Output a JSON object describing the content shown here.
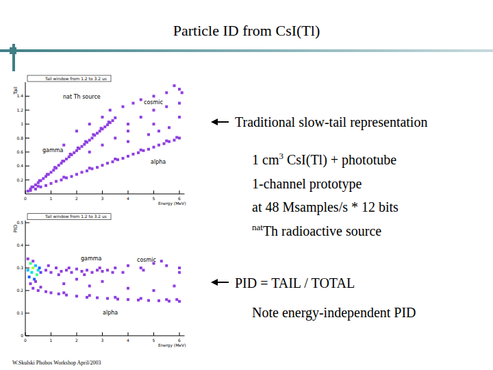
{
  "slide": {
    "title": "Particle ID from CsI(Tl)",
    "footer": "W.Skulski Phobos Workshop April/2003",
    "notes": [
      {
        "parts": [
          "Traditional slow-tail representation"
        ]
      },
      {
        "parts": [
          "1 cm",
          {
            "sup": "3"
          },
          " CsI(Tl) + phototube"
        ]
      },
      {
        "parts": [
          "1-channel prototype"
        ]
      },
      {
        "parts": [
          "at 48 Msamples/s * 12 bits"
        ]
      },
      {
        "parts": [
          {
            "sup": "nat"
          },
          "Th radioactive source"
        ]
      },
      {
        "parts": [
          "PID = TAIL / TOTAL"
        ]
      },
      {
        "parts": [
          "Note energy-independent PID"
        ]
      }
    ]
  },
  "chart_data": [
    {
      "type": "scatter",
      "title": "Tail window from 1.2 to 3.2 us",
      "x_label": "Energy (MeV)",
      "y_label": "Tail",
      "annotations": [
        "nat Th source"
      ],
      "xlim": [
        0,
        6.2
      ],
      "ylim": [
        0,
        1.6
      ],
      "xticks": [
        0,
        1,
        2,
        3,
        4,
        5,
        6
      ],
      "yticks": [
        0.2,
        0.4,
        0.6,
        0.8,
        1,
        1.2,
        1.4
      ],
      "marker": "square",
      "series": [
        {
          "name": "gamma",
          "color": "#8f3fe0",
          "x": [
            0.1,
            0.2,
            0.3,
            0.4,
            0.5,
            0.6,
            0.7,
            0.8,
            0.9,
            1.0,
            1.1,
            1.2,
            1.3,
            1.4,
            1.5,
            1.6,
            1.7,
            1.8,
            1.9,
            2.0,
            2.1,
            2.2,
            2.3,
            2.4,
            2.5,
            2.6,
            2.7,
            2.8,
            2.9,
            3.0,
            3.1,
            3.2,
            3.3,
            3.4,
            3.5,
            0.25,
            0.55,
            0.85,
            1.15,
            1.45,
            1.75,
            2.05,
            2.35,
            2.65,
            2.95,
            3.25
          ],
          "values": [
            0.04,
            0.07,
            0.1,
            0.13,
            0.16,
            0.19,
            0.22,
            0.25,
            0.28,
            0.31,
            0.34,
            0.37,
            0.41,
            0.44,
            0.47,
            0.5,
            0.53,
            0.56,
            0.59,
            0.62,
            0.65,
            0.68,
            0.71,
            0.74,
            0.77,
            0.8,
            0.84,
            0.87,
            0.9,
            0.93,
            0.96,
            0.99,
            1.02,
            1.05,
            1.09,
            0.1,
            0.19,
            0.28,
            0.38,
            0.47,
            0.57,
            0.66,
            0.75,
            0.85,
            0.94,
            1.03
          ]
        },
        {
          "name": "alpha",
          "color": "#8f3fe0",
          "x": [
            0.2,
            0.4,
            0.6,
            0.8,
            1.0,
            1.2,
            1.4,
            1.6,
            1.8,
            2.0,
            2.2,
            2.4,
            2.6,
            2.8,
            3.0,
            3.2,
            3.4,
            3.6,
            3.8,
            4.0,
            4.2,
            4.4,
            4.6,
            4.8,
            5.0,
            5.2,
            5.4,
            5.6,
            5.8,
            6.0,
            0.5,
            1.5,
            2.5,
            3.5,
            4.5,
            5.5,
            5.9
          ],
          "values": [
            0.05,
            0.07,
            0.1,
            0.12,
            0.15,
            0.18,
            0.2,
            0.23,
            0.25,
            0.28,
            0.31,
            0.33,
            0.36,
            0.38,
            0.41,
            0.44,
            0.46,
            0.49,
            0.51,
            0.54,
            0.57,
            0.59,
            0.62,
            0.64,
            0.67,
            0.7,
            0.72,
            0.75,
            0.77,
            0.8,
            0.11,
            0.24,
            0.37,
            0.5,
            0.63,
            0.76,
            0.81
          ]
        },
        {
          "name": "cosmic",
          "color": "#8f3fe0",
          "x": [
            1.5,
            2.0,
            2.5,
            3.0,
            3.3,
            3.8,
            4.2,
            4.5,
            5.0,
            5.5,
            6.0,
            4.0,
            4.5,
            5.0,
            5.5,
            6.0,
            3.5,
            4.0,
            5.0,
            6.0,
            4.8,
            5.6,
            3.0,
            2.5,
            6.1,
            5.8,
            4.0,
            5.2
          ],
          "values": [
            0.7,
            0.9,
            1.0,
            1.1,
            1.2,
            1.25,
            1.3,
            1.35,
            1.4,
            1.45,
            1.5,
            1.0,
            1.1,
            1.2,
            1.25,
            1.3,
            0.8,
            0.9,
            1.0,
            1.1,
            0.85,
            0.95,
            0.7,
            0.6,
            1.45,
            1.55,
            0.75,
            0.9
          ]
        }
      ]
    },
    {
      "type": "scatter",
      "title": "Tail window from 1.2 to 3.2 us",
      "x_label": "Energy (MeV)",
      "y_label": "PID",
      "xlim": [
        0,
        6.2
      ],
      "ylim": [
        0,
        0.51
      ],
      "xticks": [
        0,
        1,
        2,
        3,
        4,
        5,
        6
      ],
      "yticks": [
        0,
        0.1,
        0.2,
        0.3,
        0.4,
        0.5
      ],
      "marker": "square",
      "series": [
        {
          "name": "gamma",
          "color": "#8f3fe0",
          "colors": [
            "#00c0ff",
            "#2060ff",
            "#40ff80",
            "#00e0e0",
            "#a0ff40",
            "#2060ff",
            "#00c0ff",
            "#40ff80",
            "#00e0e0",
            "#2060ff",
            "#6040ff",
            "#8f3fe0",
            "#8f3fe0",
            "#8f3fe0",
            "#8f3fe0",
            "#8f3fe0",
            "#8f3fe0",
            "#8f3fe0",
            "#8f3fe0",
            "#8f3fe0",
            "#8f3fe0",
            "#8f3fe0",
            "#8f3fe0",
            "#8f3fe0",
            "#8f3fe0",
            "#8f3fe0",
            "#8f3fe0",
            "#8f3fe0",
            "#8f3fe0",
            "#8f3fe0",
            "#8f3fe0",
            "#8f3fe0",
            "#8f3fe0",
            "#8f3fe0"
          ],
          "x": [
            0.1,
            0.15,
            0.2,
            0.25,
            0.3,
            0.35,
            0.4,
            0.45,
            0.5,
            0.55,
            0.6,
            0.1,
            0.2,
            0.3,
            0.4,
            0.8,
            1.0,
            1.2,
            1.4,
            1.6,
            1.8,
            2.0,
            2.2,
            2.4,
            2.6,
            2.8,
            3.0,
            3.2,
            3.4,
            0.9,
            1.3,
            1.7,
            2.3,
            2.9
          ],
          "values": [
            0.29,
            0.26,
            0.32,
            0.28,
            0.3,
            0.25,
            0.31,
            0.27,
            0.29,
            0.3,
            0.28,
            0.34,
            0.23,
            0.33,
            0.24,
            0.29,
            0.28,
            0.3,
            0.285,
            0.29,
            0.28,
            0.295,
            0.285,
            0.29,
            0.28,
            0.29,
            0.285,
            0.29,
            0.28,
            0.31,
            0.27,
            0.3,
            0.27,
            0.3
          ]
        },
        {
          "name": "alpha",
          "color": "#8f3fe0",
          "x": [
            0.3,
            0.5,
            0.8,
            1.0,
            1.3,
            1.6,
            2.0,
            2.4,
            2.8,
            3.2,
            3.6,
            4.0,
            4.4,
            4.8,
            5.2,
            5.6,
            6.0,
            0.6,
            1.5,
            2.5,
            3.5,
            4.5,
            5.5,
            5.9
          ],
          "values": [
            0.21,
            0.2,
            0.195,
            0.19,
            0.185,
            0.18,
            0.175,
            0.17,
            0.168,
            0.165,
            0.162,
            0.16,
            0.158,
            0.156,
            0.155,
            0.153,
            0.152,
            0.215,
            0.19,
            0.178,
            0.17,
            0.165,
            0.16,
            0.16
          ]
        },
        {
          "name": "cosmic",
          "color": "#8f3fe0",
          "x": [
            3.5,
            4.0,
            4.5,
            5.0,
            5.5,
            6.0,
            3.8,
            4.6,
            5.3,
            2.5,
            3.0,
            4.0,
            5.0,
            1.5,
            2.0,
            6.0,
            5.8
          ],
          "values": [
            0.3,
            0.31,
            0.3,
            0.32,
            0.31,
            0.3,
            0.28,
            0.29,
            0.33,
            0.22,
            0.24,
            0.21,
            0.2,
            0.23,
            0.25,
            0.28,
            0.22
          ]
        }
      ]
    }
  ]
}
